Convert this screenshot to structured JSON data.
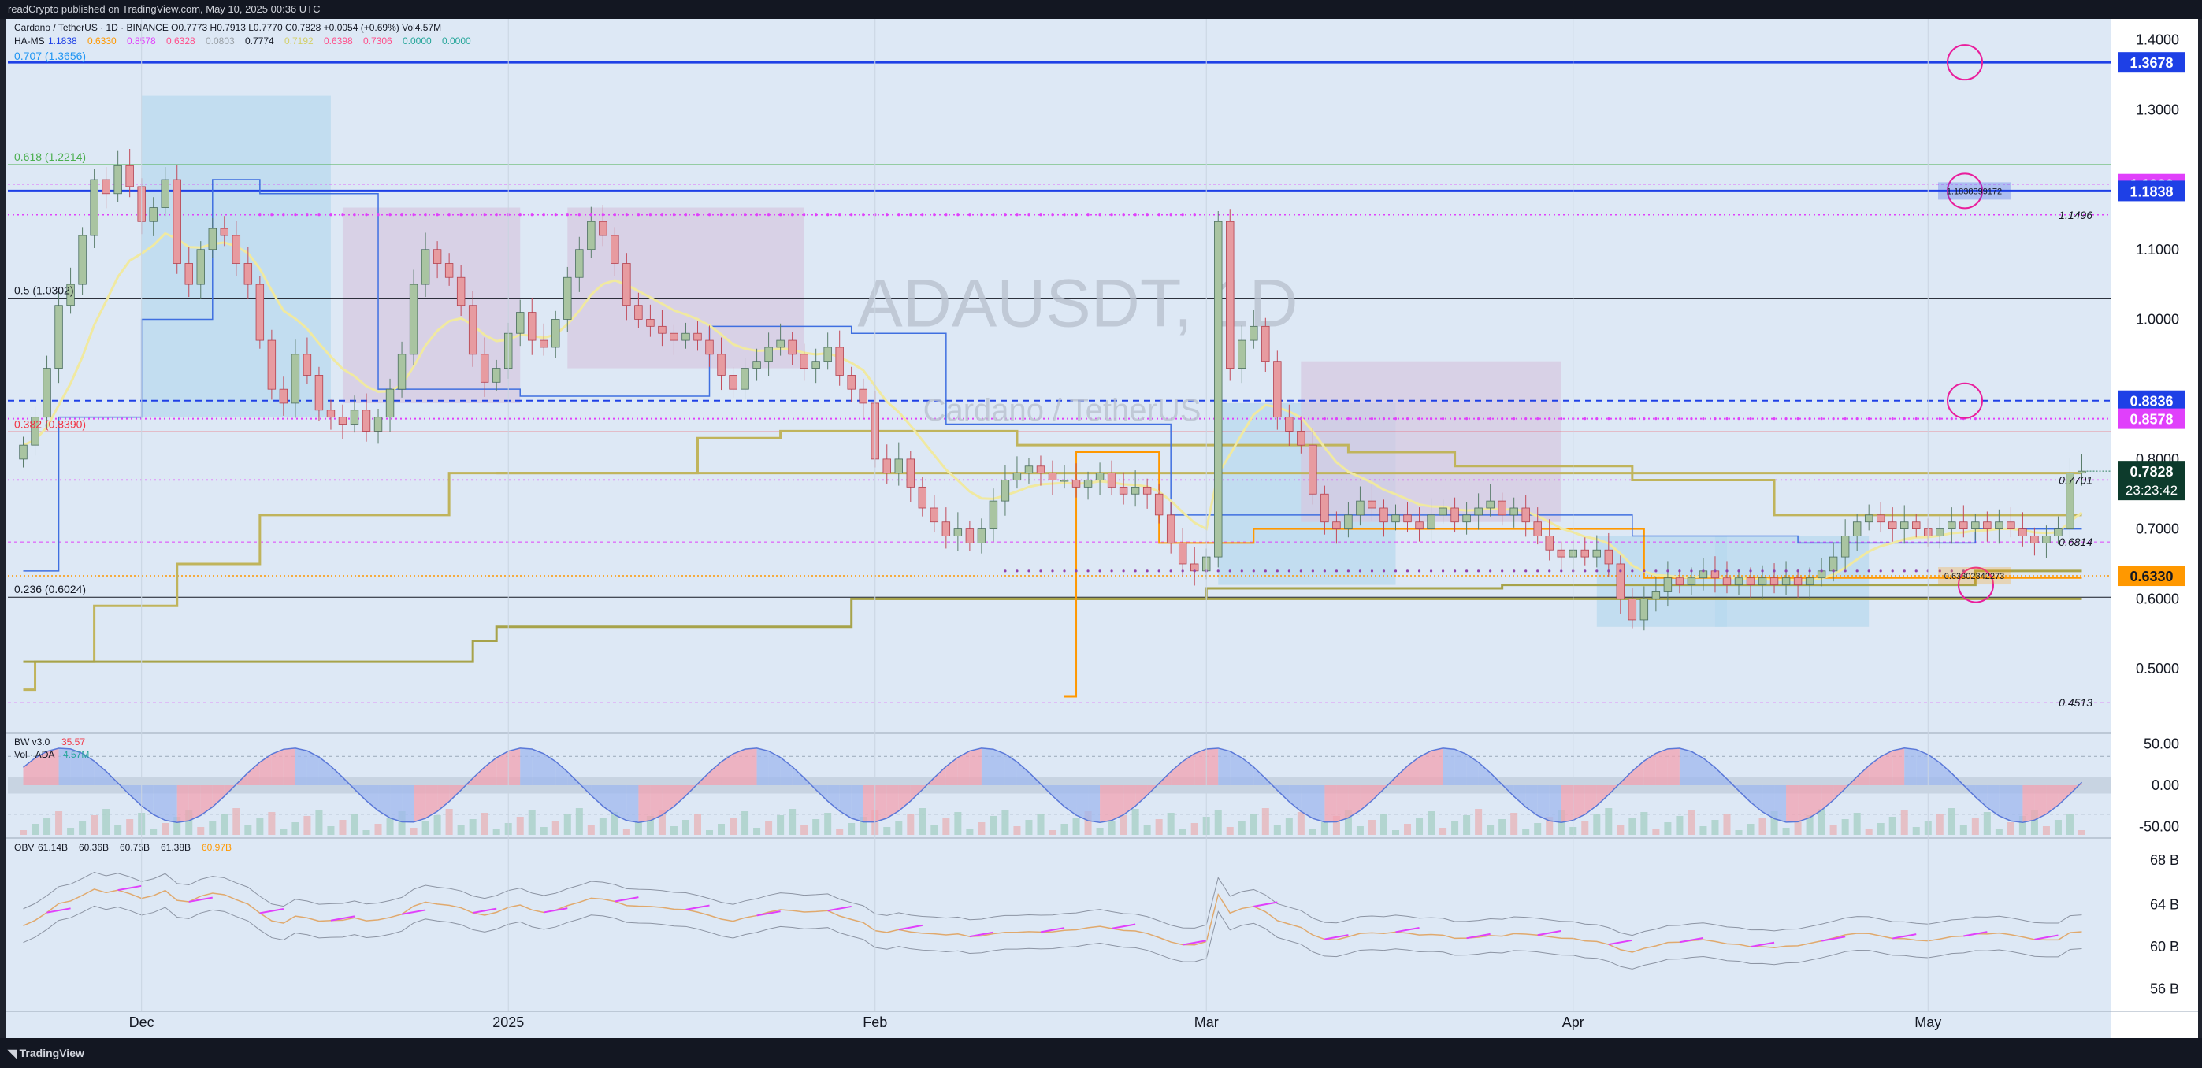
{
  "header": {
    "published": "readCrypto published on TradingView.com, May 10, 2025 00:36 UTC"
  },
  "legend": {
    "symbol_line": "Cardano / TetherUS · 1D · BINANCE",
    "ohlc": [
      "O0.7773",
      "H0.7913",
      "L0.7770",
      "C0.7828",
      "+0.0054 (+0.69%)",
      "Vol4.57M"
    ],
    "ha_ms": [
      "HA-MS",
      "1.1838",
      "0.6330",
      "0.8578",
      "0.6328",
      "0.0803",
      "0.7774",
      "0.7192",
      "0.6398",
      "0.7306",
      "0.0000",
      "0.0000"
    ],
    "ha_colors": [
      "#131722",
      "#1e40e6",
      "#ff9800",
      "#e040fb",
      "#ff4f8b",
      "#9aa0a6",
      "#131722",
      "#d4d06a",
      "#ff4f8b",
      "#ff4f8b",
      "#26a69a",
      "#26a69a"
    ]
  },
  "watermark": {
    "symbol": "ADAUSDT, 1D",
    "name": "Cardano / TetherUS"
  },
  "fib_labels": [
    {
      "text": "0.707 (1.3656)",
      "price": 1.3656,
      "color": "#2196f3"
    },
    {
      "text": "0.618 (1.2214)",
      "price": 1.2214,
      "color": "#4caf50"
    },
    {
      "text": "0.5 (1.0302)",
      "price": 1.0302,
      "color": "#131722"
    },
    {
      "text": "0.382 (0.8390)",
      "price": 0.839,
      "color": "#f23645"
    },
    {
      "text": "0.236 (0.6024)",
      "price": 0.6024,
      "color": "#131722"
    }
  ],
  "level_labels": [
    {
      "text": "1.1496",
      "price": 1.1496
    },
    {
      "text": "0.7701",
      "price": 0.7701
    },
    {
      "text": "0.6814",
      "price": 0.6814
    },
    {
      "text": "0.4513",
      "price": 0.4513
    }
  ],
  "flag_labels": [
    {
      "text": "1.1838399172",
      "price": 1.1838,
      "color": "#1e40e6"
    },
    {
      "text": "0.63302342273",
      "price": 0.633,
      "color": "#ff9800"
    }
  ],
  "chart_data": {
    "type": "candlestick",
    "title": "ADAUSDT, 1D",
    "series_name": "Cardano / TetherUS",
    "ylim": [
      0.42,
      1.43
    ],
    "y_ticks": [
      "1.4000",
      "1.3000",
      "1.1000",
      "1.0000",
      "0.8000",
      "0.7000",
      "0.6000",
      "0.5000"
    ],
    "y_tick_values": [
      1.4,
      1.3,
      1.1,
      1.0,
      0.8,
      0.7,
      0.6,
      0.5
    ],
    "x_labels": [
      "Dec",
      "2025",
      "Feb",
      "Mar",
      "Apr",
      "May"
    ],
    "x_label_indices": [
      10,
      41,
      72,
      100,
      131,
      161
    ],
    "price_badges": [
      {
        "text": "1.3678",
        "price": 1.3678,
        "bg": "#1e40e6",
        "fg": "#ffffff"
      },
      {
        "text": "1.1936",
        "price": 1.1936,
        "bg": "#e040fb",
        "fg": "#ffffff"
      },
      {
        "text": "1.1838",
        "price": 1.1838,
        "bg": "#1e40e6",
        "fg": "#ffffff"
      },
      {
        "text": "0.8836",
        "price": 0.8836,
        "bg": "#1e40e6",
        "fg": "#ffffff"
      },
      {
        "text": "0.8578",
        "price": 0.8578,
        "bg": "#e040fb",
        "fg": "#ffffff"
      },
      {
        "text": "0.6330",
        "price": 0.633,
        "bg": "#ff9800",
        "fg": "#131722"
      }
    ],
    "last_price": {
      "price": 0.7828,
      "text": "0.7828",
      "countdown": "23:23:42",
      "bg": "#0d3b2c"
    },
    "closes": [
      0.82,
      0.86,
      0.93,
      1.02,
      1.05,
      1.12,
      1.2,
      1.18,
      1.22,
      1.19,
      1.14,
      1.16,
      1.2,
      1.08,
      1.05,
      1.1,
      1.13,
      1.12,
      1.08,
      1.05,
      0.97,
      0.9,
      0.88,
      0.95,
      0.92,
      0.87,
      0.86,
      0.85,
      0.87,
      0.84,
      0.86,
      0.9,
      0.95,
      1.05,
      1.1,
      1.08,
      1.06,
      1.02,
      0.95,
      0.91,
      0.93,
      0.98,
      1.01,
      0.97,
      0.96,
      1.0,
      1.06,
      1.1,
      1.14,
      1.12,
      1.08,
      1.02,
      1.0,
      0.99,
      0.98,
      0.97,
      0.98,
      0.97,
      0.95,
      0.92,
      0.9,
      0.93,
      0.94,
      0.96,
      0.97,
      0.95,
      0.93,
      0.94,
      0.96,
      0.92,
      0.9,
      0.88,
      0.8,
      0.78,
      0.8,
      0.76,
      0.73,
      0.71,
      0.69,
      0.7,
      0.68,
      0.7,
      0.74,
      0.77,
      0.78,
      0.79,
      0.78,
      0.77,
      0.77,
      0.76,
      0.77,
      0.78,
      0.76,
      0.75,
      0.76,
      0.75,
      0.72,
      0.68,
      0.65,
      0.64,
      0.66,
      1.14,
      0.93,
      0.97,
      0.99,
      0.94,
      0.86,
      0.84,
      0.82,
      0.75,
      0.71,
      0.7,
      0.72,
      0.74,
      0.73,
      0.71,
      0.72,
      0.71,
      0.7,
      0.72,
      0.73,
      0.71,
      0.72,
      0.73,
      0.74,
      0.72,
      0.73,
      0.71,
      0.69,
      0.67,
      0.66,
      0.67,
      0.66,
      0.67,
      0.65,
      0.6,
      0.57,
      0.6,
      0.61,
      0.63,
      0.62,
      0.63,
      0.64,
      0.63,
      0.62,
      0.63,
      0.62,
      0.63,
      0.62,
      0.63,
      0.62,
      0.63,
      0.64,
      0.66,
      0.69,
      0.71,
      0.72,
      0.71,
      0.7,
      0.71,
      0.7,
      0.69,
      0.7,
      0.71,
      0.7,
      0.71,
      0.7,
      0.71,
      0.7,
      0.69,
      0.68,
      0.69,
      0.7,
      0.78,
      0.7828
    ],
    "bw_panel": {
      "label": "BW v3.0",
      "value": "35.57",
      "vol_label": "Vol · ADA",
      "vol_value": "4.57M",
      "ylim": [
        -60,
        60
      ],
      "y_ticks": [
        "50.00",
        "0.00",
        "-50.00"
      ],
      "y_tick_values": [
        50,
        0,
        -50
      ]
    },
    "obv_panel": {
      "label": "OBV",
      "values_text": [
        "61.14B",
        "60.36B",
        "60.75B",
        "61.38B",
        "60.97B"
      ],
      "ylim": [
        54,
        70
      ],
      "y_ticks": [
        "64 B",
        "60 B",
        "56 B"
      ],
      "y_tick_values": [
        64,
        60,
        56
      ],
      "top_cut_label": "68 B",
      "top_cut_value": 68.2
    }
  },
  "footer": {
    "brand": "TradingView"
  }
}
